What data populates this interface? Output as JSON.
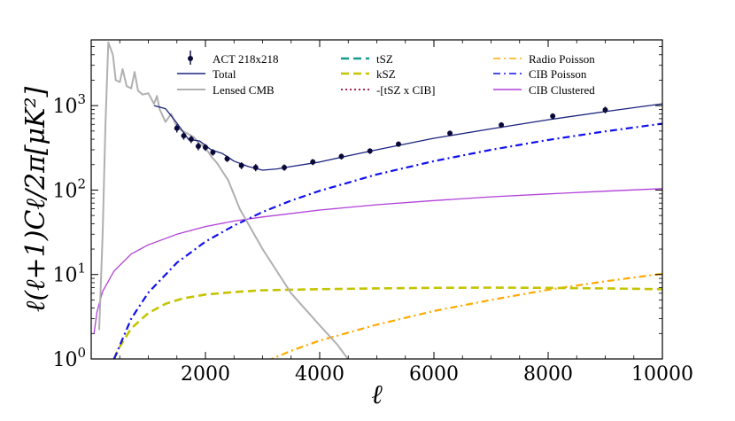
{
  "chart_data": {
    "type": "line",
    "xlabel": "ℓ",
    "ylabel": "ℓ(ℓ+1)Cℓ/2π[μK²]",
    "xlim": [
      0,
      10000
    ],
    "ylim": [
      1,
      6000
    ],
    "yscale": "log",
    "grid": false,
    "legend_position": "top",
    "x_ticks": [
      2000,
      4000,
      6000,
      8000,
      10000
    ],
    "x_tick_labels": [
      "2000",
      "4000",
      "6000",
      "8000",
      "10000"
    ],
    "y_ticks": [
      1,
      10,
      100,
      1000
    ],
    "y_tick_labels": [
      {
        "base": "10",
        "exp": "0"
      },
      {
        "base": "10",
        "exp": "1"
      },
      {
        "base": "10",
        "exp": "2"
      },
      {
        "base": "10",
        "exp": "3"
      }
    ],
    "series": [
      {
        "name": "ACT 218x218",
        "style": "errorbar",
        "color": "#0a0a3a",
        "x": [
          1500,
          1620,
          1750,
          1875,
          2000,
          2130,
          2380,
          2630,
          2880,
          3380,
          3880,
          4380,
          4880,
          5380,
          6280,
          7180,
          8080,
          9000
        ],
        "y": [
          540,
          440,
          400,
          330,
          320,
          280,
          235,
          195,
          185,
          185,
          215,
          250,
          290,
          350,
          470,
          590,
          750,
          890
        ],
        "err": [
          60,
          45,
          40,
          35,
          30,
          25,
          20,
          18,
          18,
          16,
          18,
          20,
          22,
          25,
          35,
          45,
          60,
          80
        ]
      },
      {
        "name": "Total",
        "style": "solid",
        "color": "#1a237e",
        "x": [
          1100,
          1300,
          1500,
          1700,
          1900,
          2100,
          2300,
          2500,
          2750,
          3000,
          3250,
          3500,
          4000,
          4500,
          5000,
          6000,
          7000,
          8000,
          9000,
          10000
        ],
        "y": [
          1000,
          920,
          620,
          400,
          380,
          300,
          270,
          220,
          190,
          172,
          178,
          190,
          215,
          255,
          300,
          410,
          530,
          680,
          850,
          1050
        ]
      },
      {
        "name": "Lensed CMB",
        "style": "solid",
        "color": "#b0b0b0",
        "x": [
          140,
          200,
          250,
          300,
          380,
          430,
          500,
          550,
          620,
          700,
          760,
          820,
          900,
          1000,
          1100,
          1150,
          1200,
          1300,
          1400,
          1500,
          1600,
          1700,
          1800,
          1900,
          2000,
          2100,
          2200,
          2400,
          2600,
          3000,
          3500,
          4000,
          4300,
          4600
        ],
        "y": [
          2.2,
          30,
          600,
          5600,
          4000,
          2000,
          1900,
          2700,
          1700,
          1600,
          2500,
          1500,
          1350,
          1400,
          1050,
          1300,
          900,
          640,
          800,
          550,
          500,
          460,
          420,
          350,
          320,
          250,
          210,
          130,
          60,
          20,
          6,
          2.5,
          1.5,
          0.8
        ]
      },
      {
        "name": "tSZ",
        "style": "dashed",
        "color": "#159c8e",
        "x": [],
        "y": []
      },
      {
        "name": "kSZ",
        "style": "dashed",
        "color": "#c4c400",
        "x": [
          400,
          500,
          700,
          1000,
          1300,
          1600,
          2000,
          2500,
          3000,
          4000,
          5000,
          6000,
          7000,
          8000,
          9000,
          10000
        ],
        "y": [
          1,
          1.4,
          2.3,
          3.5,
          4.5,
          5.2,
          5.8,
          6.2,
          6.5,
          6.7,
          6.85,
          6.95,
          7.0,
          6.95,
          6.85,
          6.7
        ]
      },
      {
        "name": "-[tSZ x CIB]",
        "style": "dotted",
        "color": "#a00040",
        "x": [],
        "y": []
      },
      {
        "name": "Radio Poisson",
        "style": "dashdot",
        "color": "#ffaa00",
        "x": [
          2600,
          3000,
          3500,
          4000,
          5000,
          6000,
          7000,
          8000,
          9000,
          10000
        ],
        "y": [
          0.6,
          0.9,
          1.25,
          1.65,
          2.55,
          3.7,
          5.0,
          6.6,
          8.3,
          10.2
        ]
      },
      {
        "name": "CIB Poisson",
        "style": "dashdot",
        "color": "#1010ee",
        "x": [
          400,
          700,
          1000,
          1500,
          2000,
          2500,
          3000,
          3500,
          4000,
          5000,
          6000,
          7000,
          8000,
          9000,
          10000
        ],
        "y": [
          1,
          3,
          6.1,
          13.8,
          24.5,
          38,
          55,
          75,
          98,
          153,
          220,
          300,
          392,
          496,
          612
        ]
      },
      {
        "name": "CIB Clustered",
        "style": "solid",
        "color": "#b040d8",
        "x": [
          50,
          100,
          200,
          400,
          700,
          1000,
          1500,
          2000,
          2500,
          3000,
          4000,
          5000,
          6000,
          7000,
          8000,
          9000,
          10000
        ],
        "y": [
          2.0,
          3.6,
          6.3,
          11,
          17.5,
          22.5,
          30,
          37,
          43,
          48,
          58,
          67,
          75,
          83,
          90,
          97,
          104
        ]
      }
    ]
  }
}
